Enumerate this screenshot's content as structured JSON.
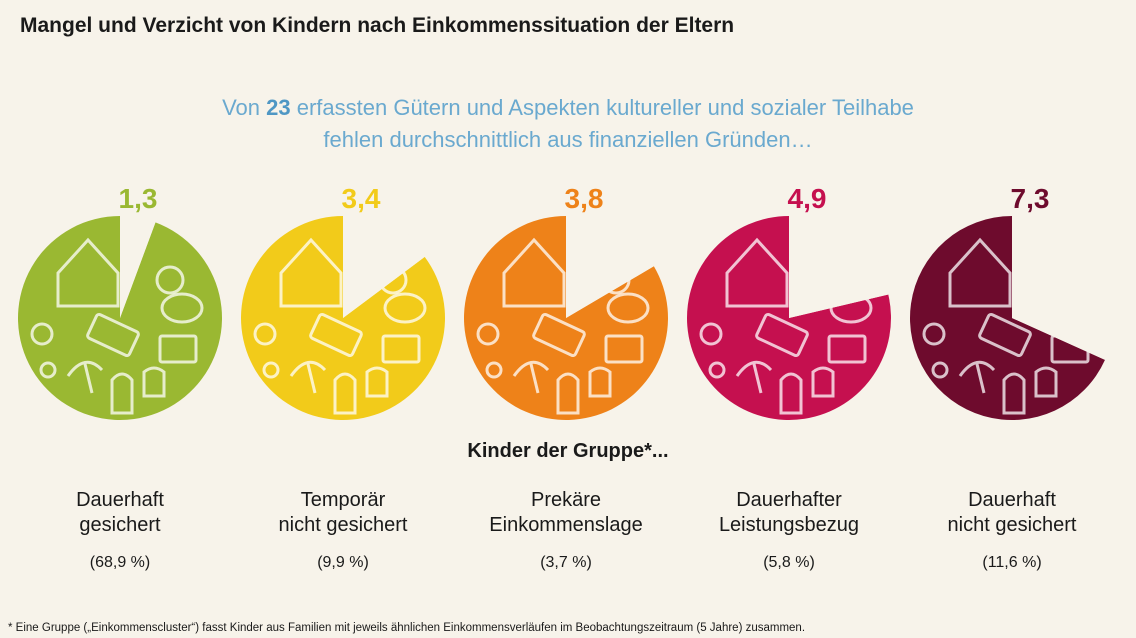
{
  "title": "Mangel und Verzicht von Kindern nach Einkommenssituation der Eltern",
  "subtitle": {
    "prefix": "Von ",
    "number": "23",
    "middle": " erfassten Gütern und Aspekten kultureller und sozialer Teilhabe",
    "line2": "fehlen durchschnittlich aus finanziellen Gründen…"
  },
  "group_label": "Kinder der Gruppe*...",
  "footnote": "* Eine Gruppe („Einkommenscluster“) fasst Kinder aus Familien mit jeweils ähnlichen Einkommensverläufen im Beobachtungszeitraum (5 Jahre) zusammen.",
  "chart_data": {
    "type": "pie",
    "title": "Mangel und Verzicht von Kindern nach Einkommenssituation der Eltern",
    "total": 23,
    "categories": [
      "Dauerhaft gesichert",
      "Temporär nicht gesichert",
      "Prekäre Einkommenslage",
      "Dauerhafter Leistungsbezug",
      "Dauerhaft nicht gesichert"
    ],
    "values": [
      1.3,
      3.4,
      3.8,
      4.9,
      7.3
    ],
    "value_labels": [
      "1,3",
      "3,4",
      "3,8",
      "4,9",
      "7,3"
    ],
    "lines1": [
      "Dauerhaft",
      "Temporär",
      "Prekäre",
      "Dauerhafter",
      "Dauerhaft"
    ],
    "lines2": [
      "gesichert",
      "nicht gesichert",
      "Einkommenslage",
      "Leistungsbezug",
      "nicht gesichert"
    ],
    "shares": [
      "(68,9 %)",
      "(9,9 %)",
      "(3,7 %)",
      "(5,8 %)",
      "(11,6 %)"
    ],
    "colors": [
      "#9ab832",
      "#f2cb1a",
      "#ee8219",
      "#c5104f",
      "#6e0b2d"
    ],
    "icon_color": "#ffffff"
  }
}
